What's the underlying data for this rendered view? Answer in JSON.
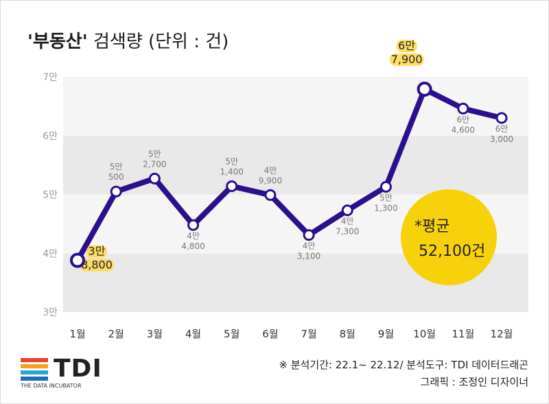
{
  "title": {
    "bold": "'부동산'",
    "rest": " 검색량 (단위 : 건)"
  },
  "chart_data": {
    "type": "line",
    "title": "'부동산' 검색량 (단위 : 건)",
    "categories": [
      "1월",
      "2월",
      "3월",
      "4월",
      "5월",
      "6월",
      "7월",
      "8월",
      "9월",
      "10월",
      "11월",
      "12월"
    ],
    "values": [
      38800,
      50500,
      52700,
      44800,
      51400,
      49900,
      43100,
      47300,
      51300,
      67900,
      64600,
      63000
    ],
    "point_labels": [
      [
        "3만",
        "8,800"
      ],
      [
        "5만",
        "500"
      ],
      [
        "5만",
        "2,700"
      ],
      [
        "4만",
        "4,800"
      ],
      [
        "5만",
        "1,400"
      ],
      [
        "4만",
        "9,900"
      ],
      [
        "4만",
        "3,100"
      ],
      [
        "4만",
        "7,300"
      ],
      [
        "5만",
        "1,300"
      ],
      [
        "6만",
        "7,900"
      ],
      [
        "6만",
        "4,600"
      ],
      [
        "6만",
        "3,000"
      ]
    ],
    "ylim": [
      30000,
      70000
    ],
    "yticks": [
      30000,
      40000,
      50000,
      60000,
      70000
    ],
    "ytick_labels": [
      "3만",
      "4만",
      "5만",
      "6만",
      "7만"
    ],
    "grid": "alternating bands",
    "line_color": "#2b0f8f",
    "highlight_color": "#ffd84a"
  },
  "average": {
    "label": "*평균",
    "value": "52,100건",
    "color": "#f7d20a"
  },
  "source": {
    "line1": "※ 분석기간: 22.1~ 22.12/ 분석도구: TDI 데이터드래곤",
    "line2": "그래픽 : 조정인 디자이너"
  },
  "logo": {
    "text": "TDI",
    "subtitle": "THE DATA INCUBATOR",
    "colors": [
      "#e8452c",
      "#f7a21b",
      "#2aa5d8",
      "#1b6fb5"
    ]
  }
}
